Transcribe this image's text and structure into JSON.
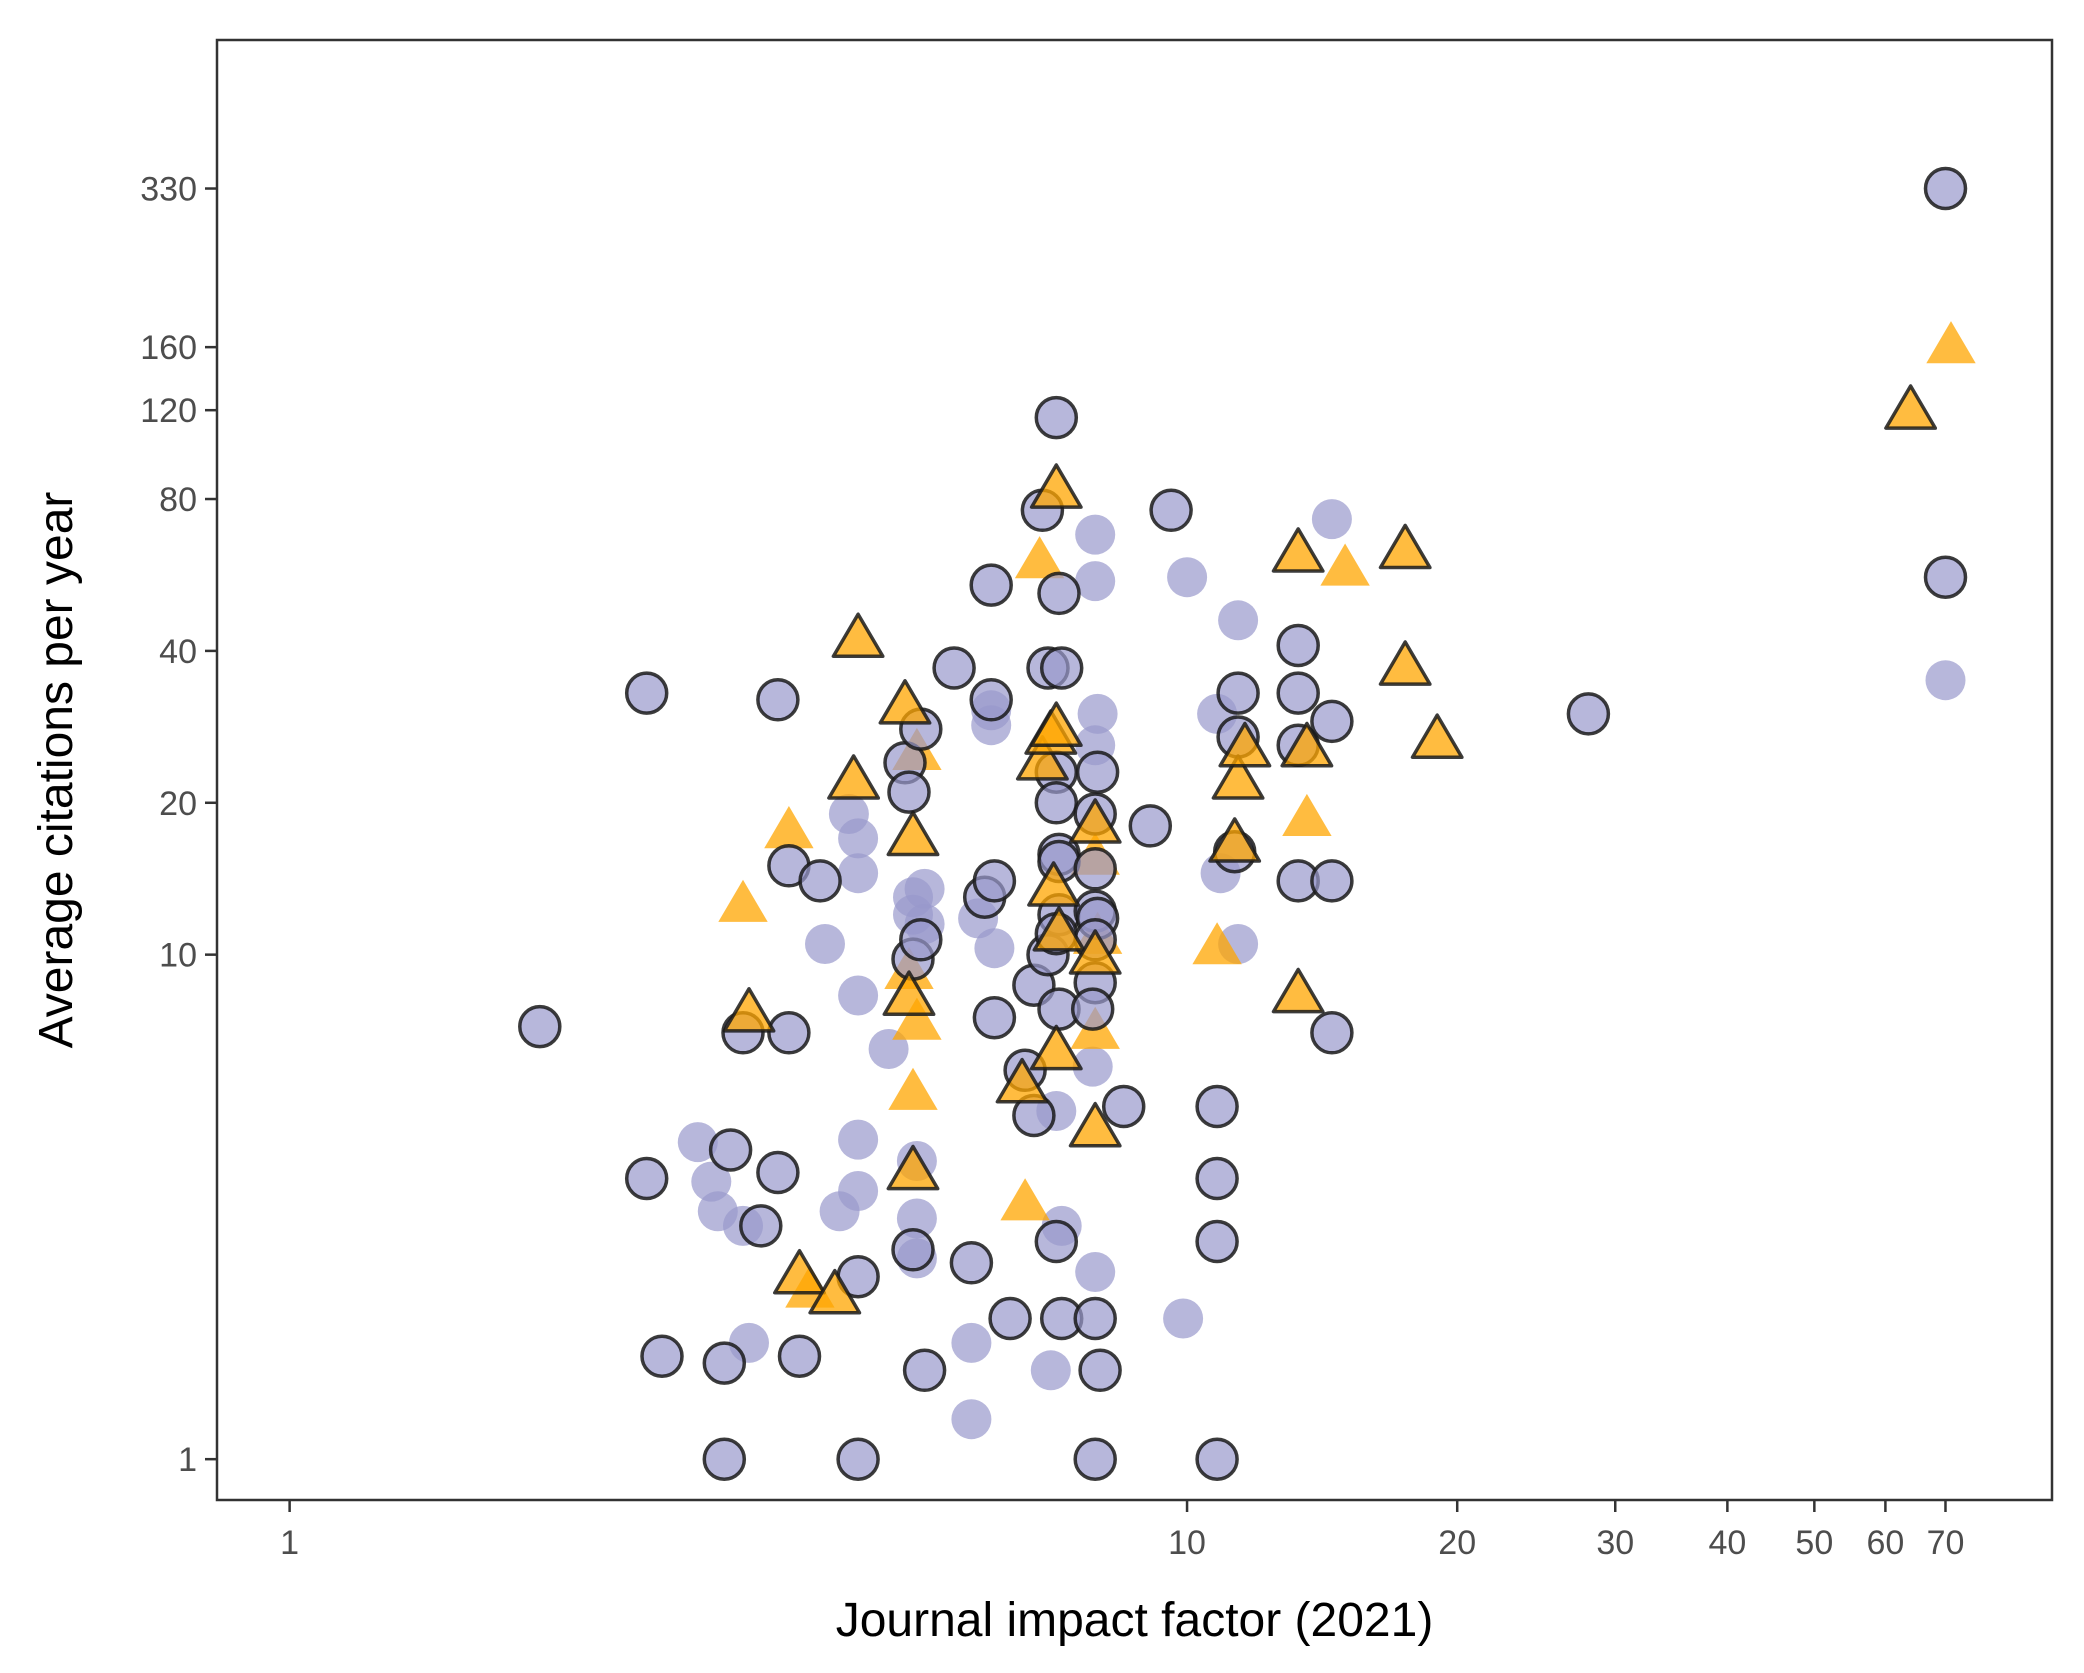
{
  "chart_data": {
    "type": "scatter",
    "title": "",
    "xlabel": "Journal impact factor (2021)",
    "ylabel": "Average citations per year",
    "x_scale": "log",
    "y_scale": "log",
    "xlim": [
      0.83,
      92
    ],
    "ylim": [
      0.83,
      650
    ],
    "x_ticks": [
      1,
      10,
      20,
      30,
      40,
      50,
      60,
      70
    ],
    "x_tick_labels": [
      "1",
      "10",
      "20",
      "30",
      "40",
      "50",
      "60",
      "70"
    ],
    "y_ticks": [
      1,
      10,
      20,
      40,
      80,
      120,
      160,
      330
    ],
    "y_tick_labels": [
      "1",
      "10",
      "20",
      "40",
      "80",
      "120",
      "160",
      "330"
    ],
    "grid": false,
    "legend": "none",
    "colors": {
      "circle_fill": "#9999cc",
      "triangle_fill": "#ffa500",
      "outline": "#1a1a1a",
      "axis": "#333333"
    },
    "series": [
      {
        "marker": "circle",
        "outlined": true,
        "points": [
          [
            2.5,
            33
          ],
          [
            1.9,
            7.2
          ],
          [
            2.5,
            3.6
          ],
          [
            2.6,
            1.6
          ],
          [
            3.05,
            1.55
          ],
          [
            3.1,
            4.1
          ],
          [
            3.05,
            1.0
          ],
          [
            3.2,
            7.0
          ],
          [
            3.6,
            15
          ],
          [
            3.6,
            7.0
          ],
          [
            3.5,
            32
          ],
          [
            3.5,
            3.7
          ],
          [
            3.35,
            2.9
          ],
          [
            3.7,
            1.6
          ],
          [
            3.9,
            14
          ],
          [
            4.3,
            2.3
          ],
          [
            4.3,
            1.0
          ],
          [
            4.85,
            24
          ],
          [
            4.9,
            21
          ],
          [
            4.95,
            9.8
          ],
          [
            5.05,
            28
          ],
          [
            5.05,
            10.7
          ],
          [
            4.95,
            2.6
          ],
          [
            5.1,
            1.5
          ],
          [
            5.5,
            37
          ],
          [
            5.75,
            2.45
          ],
          [
            6.05,
            32
          ],
          [
            5.95,
            13
          ],
          [
            6.1,
            14
          ],
          [
            6.05,
            54
          ],
          [
            6.1,
            7.5
          ],
          [
            6.35,
            1.9
          ],
          [
            6.6,
            5.9
          ],
          [
            6.75,
            8.7
          ],
          [
            6.75,
            4.8
          ],
          [
            6.9,
            76
          ],
          [
            7.0,
            37
          ],
          [
            7.0,
            10
          ],
          [
            7.15,
            116
          ],
          [
            7.2,
            52
          ],
          [
            7.25,
            37
          ],
          [
            7.15,
            23
          ],
          [
            7.15,
            20
          ],
          [
            7.2,
            15.8
          ],
          [
            7.2,
            15.3
          ],
          [
            7.2,
            12
          ],
          [
            7.15,
            11
          ],
          [
            7.25,
            1.9
          ],
          [
            7.15,
            2.7
          ],
          [
            7.2,
            7.8
          ],
          [
            7.95,
            23
          ],
          [
            7.9,
            19
          ],
          [
            7.9,
            14.8
          ],
          [
            7.9,
            12.2
          ],
          [
            7.95,
            11.8
          ],
          [
            7.9,
            10.7
          ],
          [
            7.9,
            8.8
          ],
          [
            7.85,
            7.8
          ],
          [
            7.9,
            1.9
          ],
          [
            7.9,
            1.0
          ],
          [
            8.0,
            1.5
          ],
          [
            8.5,
            5.0
          ],
          [
            9.1,
            18
          ],
          [
            9.6,
            76
          ],
          [
            10.8,
            5.0
          ],
          [
            10.8,
            3.6
          ],
          [
            10.8,
            2.7
          ],
          [
            10.8,
            1.0
          ],
          [
            11.4,
            33
          ],
          [
            11.4,
            27
          ],
          [
            11.3,
            16
          ],
          [
            13.3,
            41
          ],
          [
            13.3,
            33
          ],
          [
            13.3,
            26
          ],
          [
            13.3,
            14
          ],
          [
            14.5,
            29
          ],
          [
            14.5,
            14
          ],
          [
            14.5,
            7.0
          ],
          [
            28,
            30
          ],
          [
            70,
            330
          ],
          [
            70,
            56
          ]
        ]
      },
      {
        "marker": "circle",
        "outlined": false,
        "points": [
          [
            2.85,
            4.25
          ],
          [
            2.95,
            3.55
          ],
          [
            3.0,
            3.1
          ],
          [
            3.2,
            2.9
          ],
          [
            3.25,
            1.7
          ],
          [
            3.95,
            10.5
          ],
          [
            4.1,
            3.1
          ],
          [
            4.2,
            19
          ],
          [
            4.3,
            3.4
          ],
          [
            4.3,
            4.3
          ],
          [
            4.3,
            8.3
          ],
          [
            4.3,
            17
          ],
          [
            4.3,
            14.5
          ],
          [
            4.95,
            13
          ],
          [
            4.95,
            12
          ],
          [
            5.1,
            13.5
          ],
          [
            5.1,
            11.5
          ],
          [
            5.0,
            3.9
          ],
          [
            5.0,
            3.0
          ],
          [
            5.0,
            2.5
          ],
          [
            4.65,
            6.5
          ],
          [
            5.85,
            11.8
          ],
          [
            5.75,
            1.2
          ],
          [
            5.75,
            1.7
          ],
          [
            6.1,
            10.3
          ],
          [
            6.05,
            28.5
          ],
          [
            6.05,
            30.5
          ],
          [
            7.05,
            1.5
          ],
          [
            7.15,
            4.9
          ],
          [
            7.25,
            2.9
          ],
          [
            7.9,
            68
          ],
          [
            7.9,
            55
          ],
          [
            7.95,
            30
          ],
          [
            7.9,
            26
          ],
          [
            7.85,
            6.0
          ],
          [
            7.9,
            2.35
          ],
          [
            10.0,
            56
          ],
          [
            9.9,
            1.9
          ],
          [
            10.8,
            30
          ],
          [
            10.9,
            14.5
          ],
          [
            11.4,
            46
          ],
          [
            11.4,
            10.5
          ],
          [
            14.5,
            73
          ],
          [
            70,
            35
          ]
        ]
      },
      {
        "marker": "triangle",
        "outlined": true,
        "points": [
          [
            3.25,
            7.6
          ],
          [
            3.7,
            2.3
          ],
          [
            4.05,
            2.1
          ],
          [
            4.3,
            42
          ],
          [
            4.25,
            22
          ],
          [
            4.85,
            31
          ],
          [
            4.95,
            17
          ],
          [
            4.9,
            8.2
          ],
          [
            4.95,
            3.7
          ],
          [
            6.55,
            5.5
          ],
          [
            6.9,
            24
          ],
          [
            7.05,
            27
          ],
          [
            7.15,
            28
          ],
          [
            7.15,
            83
          ],
          [
            7.1,
            13.5
          ],
          [
            7.2,
            11
          ],
          [
            7.15,
            6.4
          ],
          [
            7.9,
            18
          ],
          [
            7.9,
            9.9
          ],
          [
            7.9,
            4.5
          ],
          [
            11.4,
            22
          ],
          [
            11.3,
            16.5
          ],
          [
            11.6,
            25.5
          ],
          [
            13.3,
            62
          ],
          [
            13.3,
            8.3
          ],
          [
            13.6,
            25.5
          ],
          [
            17.5,
            63
          ],
          [
            17.5,
            37
          ],
          [
            19,
            26.5
          ],
          [
            64,
            119
          ]
        ]
      },
      {
        "marker": "triangle",
        "outlined": false,
        "points": [
          [
            3.2,
            12.5
          ],
          [
            3.6,
            17.5
          ],
          [
            3.8,
            2.15
          ],
          [
            5.0,
            25
          ],
          [
            4.9,
            9.2
          ],
          [
            5.0,
            7.3
          ],
          [
            4.95,
            5.3
          ],
          [
            6.6,
            3.2
          ],
          [
            6.85,
            60
          ],
          [
            7.9,
            15.5
          ],
          [
            7.95,
            10.8
          ],
          [
            7.9,
            7.0
          ],
          [
            10.8,
            10.3
          ],
          [
            13.6,
            18.5
          ],
          [
            15,
            58
          ],
          [
            71,
            160
          ]
        ]
      }
    ]
  }
}
